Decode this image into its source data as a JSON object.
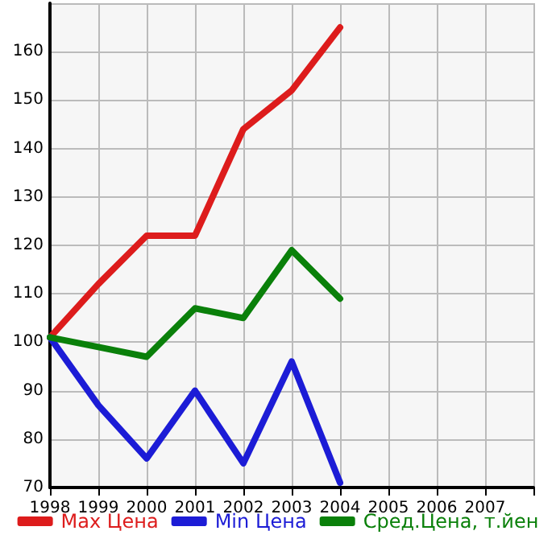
{
  "chart_data": {
    "type": "line",
    "x": [
      1998,
      1999,
      2000,
      2001,
      2002,
      2003,
      2004
    ],
    "series": [
      {
        "name": "Max Цена",
        "color": "#dd1c1c",
        "values": [
          101,
          112,
          122,
          122,
          144,
          152,
          165
        ]
      },
      {
        "name": "Min Цена",
        "color": "#1c1cd6",
        "values": [
          101,
          87,
          76,
          90,
          75,
          96,
          71
        ]
      },
      {
        "name": "Сред.Цена, т.йен",
        "color": "#0a800a",
        "values": [
          101,
          99,
          97,
          107,
          105,
          119,
          109
        ]
      }
    ],
    "xlim": [
      1998,
      2008
    ],
    "xticks": [
      1998,
      1999,
      2000,
      2001,
      2002,
      2003,
      2004,
      2005,
      2006,
      2007,
      {
        "value": 2008,
        "label": null
      }
    ],
    "ylim": [
      70,
      170
    ],
    "yticks": [
      70,
      80,
      90,
      100,
      110,
      120,
      130,
      140,
      150,
      160,
      {
        "value": 170,
        "label": null
      }
    ],
    "grid": true,
    "legend": "bottom",
    "marker": "none",
    "line_style": "solid"
  }
}
